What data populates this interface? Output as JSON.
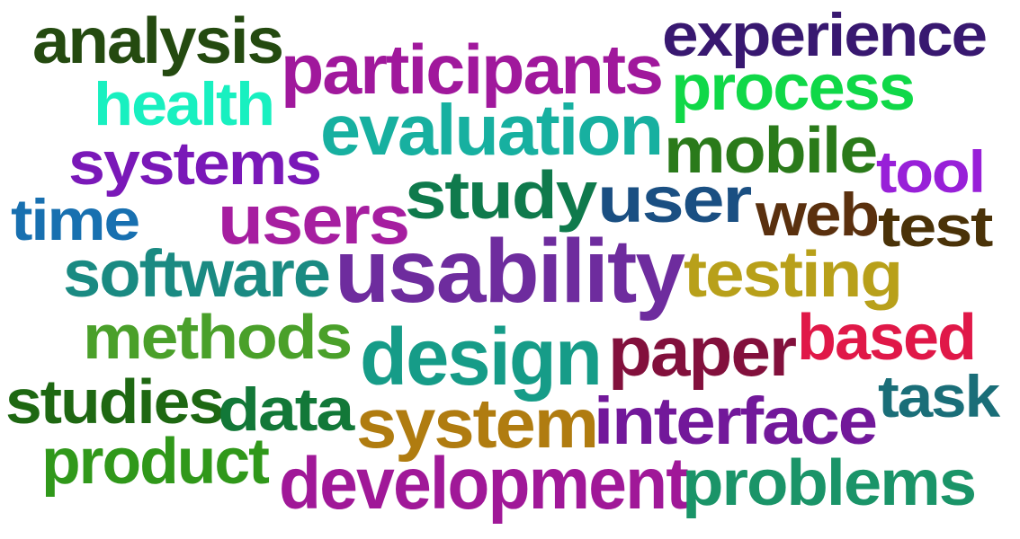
{
  "words": [
    {
      "text": "usability",
      "color": "#6e2c9e"
    },
    {
      "text": "design",
      "color": "#169c88"
    },
    {
      "text": "system",
      "color": "#b07c10"
    },
    {
      "text": "user",
      "color": "#1a4f82"
    },
    {
      "text": "study",
      "color": "#0f7a4c"
    },
    {
      "text": "participants",
      "color": "#a0189c"
    },
    {
      "text": "evaluation",
      "color": "#17b0a0"
    },
    {
      "text": "users",
      "color": "#a61ea0"
    },
    {
      "text": "development",
      "color": "#a01898"
    },
    {
      "text": "interface",
      "color": "#72189a"
    },
    {
      "text": "software",
      "color": "#1a8a82"
    },
    {
      "text": "testing",
      "color": "#b8a01a"
    },
    {
      "text": "methods",
      "color": "#4aa02a"
    },
    {
      "text": "paper",
      "color": "#82103c"
    },
    {
      "text": "based",
      "color": "#e01848"
    },
    {
      "text": "problems",
      "color": "#1a9468"
    },
    {
      "text": "experience",
      "color": "#381870"
    },
    {
      "text": "analysis",
      "color": "#244a10"
    },
    {
      "text": "process",
      "color": "#10d848"
    },
    {
      "text": "mobile",
      "color": "#2a7a1a"
    },
    {
      "text": "systems",
      "color": "#7a18b8"
    },
    {
      "text": "health",
      "color": "#18f0c0"
    },
    {
      "text": "web",
      "color": "#5a300e"
    },
    {
      "text": "test",
      "color": "#4a3208"
    },
    {
      "text": "tool",
      "color": "#9820d8"
    },
    {
      "text": "time",
      "color": "#1870b0"
    },
    {
      "text": "studies",
      "color": "#1e6812"
    },
    {
      "text": "data",
      "color": "#127838"
    },
    {
      "text": "product",
      "color": "#30981a"
    },
    {
      "text": "task",
      "color": "#1a6e78"
    }
  ]
}
